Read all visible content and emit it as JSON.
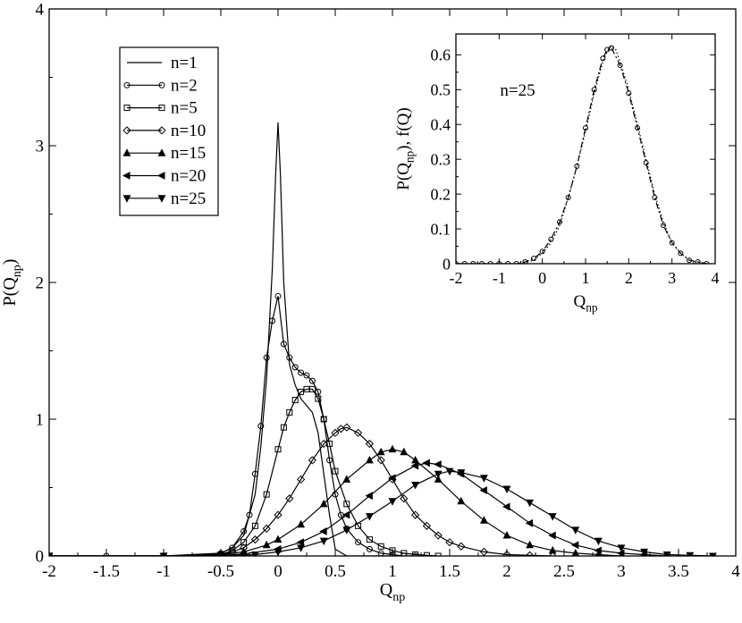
{
  "chart_data": [
    {
      "type": "line",
      "xlabel_main": "Q",
      "xlabel_sub": "np",
      "ylabel_pre": "P(Q",
      "ylabel_sub": "np",
      "ylabel_post": ")",
      "xlim": [
        -2,
        4
      ],
      "ylim": [
        0,
        4
      ],
      "xticks": [
        -2,
        -1.5,
        -1,
        -0.5,
        0,
        0.5,
        1,
        1.5,
        2,
        2.5,
        3,
        3.5,
        4
      ],
      "xtick_labels": [
        "-2",
        "-1.5",
        "-1",
        "-0.5",
        "0",
        "0.5",
        "1",
        "1.5",
        "2",
        "2.5",
        "3",
        "3.5",
        "4"
      ],
      "yticks": [
        0,
        1,
        2,
        3,
        4
      ],
      "ytick_labels": [
        "0",
        "1",
        "2",
        "3",
        "4"
      ],
      "legend_position": "top-left",
      "grid": false,
      "series": [
        {
          "name": "n=1",
          "marker": "none",
          "x": [
            -2,
            -1.5,
            -1,
            -0.6,
            -0.5,
            -0.4,
            -0.3,
            -0.2,
            -0.15,
            -0.1,
            -0.05,
            -0.02,
            0,
            0.02,
            0.05,
            0.1,
            0.15,
            0.2,
            0.25,
            0.3,
            0.35,
            0.4,
            0.45,
            0.5,
            0.6,
            1.0
          ],
          "y": [
            0,
            0,
            0,
            0.01,
            0.02,
            0.06,
            0.15,
            0.45,
            0.8,
            1.3,
            2.1,
            2.8,
            3.17,
            2.8,
            2.0,
            1.4,
            1.25,
            1.15,
            1.1,
            1.05,
            0.9,
            0.6,
            0.3,
            0.05,
            0,
            0
          ]
        },
        {
          "name": "n=2",
          "marker": "circle",
          "x": [
            -2,
            -1.5,
            -1,
            -0.5,
            -0.4,
            -0.3,
            -0.25,
            -0.2,
            -0.15,
            -0.1,
            -0.05,
            0,
            0.05,
            0.1,
            0.15,
            0.2,
            0.25,
            0.3,
            0.35,
            0.4,
            0.45,
            0.5,
            0.55,
            0.6,
            0.7,
            0.8,
            0.9,
            1.0,
            1.1,
            1.2
          ],
          "y": [
            0,
            0,
            0,
            0.02,
            0.06,
            0.18,
            0.3,
            0.6,
            0.95,
            1.45,
            1.72,
            1.9,
            1.55,
            1.45,
            1.38,
            1.34,
            1.32,
            1.28,
            1.2,
            1.0,
            0.7,
            0.45,
            0.3,
            0.2,
            0.1,
            0.05,
            0.02,
            0.01,
            0,
            0
          ]
        },
        {
          "name": "n=5",
          "marker": "square",
          "x": [
            -2,
            -1,
            -0.5,
            -0.4,
            -0.3,
            -0.2,
            -0.1,
            0,
            0.05,
            0.1,
            0.15,
            0.2,
            0.25,
            0.3,
            0.35,
            0.4,
            0.45,
            0.5,
            0.6,
            0.7,
            0.8,
            0.9,
            1.0,
            1.1,
            1.2,
            1.3,
            1.4
          ],
          "y": [
            0,
            0,
            0.01,
            0.04,
            0.1,
            0.22,
            0.45,
            0.78,
            0.94,
            1.05,
            1.14,
            1.2,
            1.22,
            1.22,
            1.15,
            1.0,
            0.82,
            0.62,
            0.38,
            0.22,
            0.12,
            0.07,
            0.04,
            0.02,
            0.01,
            0.005,
            0
          ]
        },
        {
          "name": "n=10",
          "marker": "diamond",
          "x": [
            -2,
            -1,
            -0.5,
            -0.4,
            -0.3,
            -0.2,
            -0.1,
            0,
            0.1,
            0.2,
            0.3,
            0.4,
            0.5,
            0.55,
            0.6,
            0.7,
            0.8,
            0.9,
            1.0,
            1.1,
            1.2,
            1.3,
            1.4,
            1.5,
            1.6,
            1.8,
            2.0,
            2.2,
            2.4
          ],
          "y": [
            0,
            0,
            0.01,
            0.03,
            0.06,
            0.12,
            0.2,
            0.3,
            0.42,
            0.56,
            0.7,
            0.82,
            0.9,
            0.93,
            0.94,
            0.9,
            0.82,
            0.7,
            0.56,
            0.42,
            0.3,
            0.22,
            0.15,
            0.1,
            0.07,
            0.03,
            0.01,
            0.005,
            0
          ]
        },
        {
          "name": "n=15",
          "marker": "triangle-up",
          "x": [
            -2,
            -1,
            -0.5,
            -0.3,
            -0.1,
            0,
            0.2,
            0.4,
            0.6,
            0.8,
            0.9,
            1.0,
            1.1,
            1.2,
            1.4,
            1.6,
            1.8,
            2.0,
            2.2,
            2.4,
            2.6,
            2.8,
            3.0
          ],
          "y": [
            0,
            0,
            0.01,
            0.03,
            0.08,
            0.12,
            0.23,
            0.38,
            0.56,
            0.7,
            0.76,
            0.78,
            0.76,
            0.7,
            0.56,
            0.4,
            0.26,
            0.15,
            0.08,
            0.04,
            0.02,
            0.01,
            0
          ]
        },
        {
          "name": "n=20",
          "marker": "triangle-left",
          "x": [
            -2,
            -1,
            -0.5,
            -0.3,
            0,
            0.2,
            0.4,
            0.6,
            0.8,
            1.0,
            1.2,
            1.3,
            1.4,
            1.6,
            1.8,
            2.0,
            2.2,
            2.4,
            2.6,
            2.8,
            3.0,
            3.2,
            3.4
          ],
          "y": [
            0,
            0,
            0.005,
            0.015,
            0.05,
            0.1,
            0.18,
            0.3,
            0.44,
            0.57,
            0.66,
            0.68,
            0.67,
            0.6,
            0.48,
            0.36,
            0.24,
            0.15,
            0.08,
            0.04,
            0.02,
            0.01,
            0
          ]
        },
        {
          "name": "n=25",
          "marker": "triangle-down",
          "x": [
            -2,
            -1,
            -0.5,
            -0.2,
            0,
            0.2,
            0.4,
            0.6,
            0.8,
            1.0,
            1.2,
            1.4,
            1.5,
            1.6,
            1.8,
            2.0,
            2.2,
            2.4,
            2.6,
            2.8,
            3.0,
            3.2,
            3.4,
            3.6,
            3.8
          ],
          "y": [
            0,
            0,
            0.005,
            0.01,
            0.03,
            0.06,
            0.11,
            0.19,
            0.29,
            0.4,
            0.52,
            0.6,
            0.62,
            0.61,
            0.57,
            0.49,
            0.39,
            0.29,
            0.19,
            0.11,
            0.06,
            0.03,
            0.01,
            0.005,
            0
          ]
        }
      ]
    },
    {
      "type": "line",
      "xlabel_main": "Q",
      "xlabel_sub": "np",
      "ylabel_pre": "P(Q",
      "ylabel_sub": "np",
      "ylabel_post": "), f(Q)",
      "annotation": "n=25",
      "xlim": [
        -2,
        4
      ],
      "ylim": [
        0,
        0.66
      ],
      "xticks": [
        -2,
        -1,
        0,
        1,
        2,
        3,
        4
      ],
      "xtick_labels": [
        "-2",
        "-1",
        "0",
        "1",
        "2",
        "3",
        "4"
      ],
      "yticks": [
        0,
        0.1,
        0.2,
        0.3,
        0.4,
        0.5,
        0.6
      ],
      "ytick_labels": [
        "0",
        "0.1",
        "0.2",
        "0.3",
        "0.4",
        "0.5",
        "0.6"
      ],
      "grid": false,
      "series": [
        {
          "marker": "circle",
          "line": "dash-dot",
          "x": [
            -2,
            -1.8,
            -1.6,
            -1.4,
            -1.2,
            -1,
            -0.8,
            -0.6,
            -0.4,
            -0.2,
            0,
            0.2,
            0.4,
            0.6,
            0.8,
            1.0,
            1.2,
            1.4,
            1.5,
            1.6,
            1.8,
            2.0,
            2.2,
            2.4,
            2.6,
            2.8,
            3.0,
            3.2,
            3.4,
            3.6,
            3.8
          ],
          "y": [
            0,
            0,
            0,
            0,
            0,
            0,
            0,
            0,
            0.005,
            0.015,
            0.035,
            0.07,
            0.12,
            0.19,
            0.28,
            0.39,
            0.5,
            0.59,
            0.615,
            0.62,
            0.57,
            0.49,
            0.39,
            0.29,
            0.19,
            0.11,
            0.06,
            0.03,
            0.01,
            0.005,
            0
          ]
        },
        {
          "marker": "none",
          "line": "dotted",
          "x": [
            -2,
            -1,
            -0.5,
            -0.2,
            0,
            0.2,
            0.4,
            0.6,
            0.8,
            1.0,
            1.2,
            1.4,
            1.5,
            1.6,
            1.7,
            1.8,
            2.0,
            2.2,
            2.4,
            2.6,
            2.8,
            3.0,
            3.2,
            3.4,
            3.6,
            3.8
          ],
          "y": [
            0,
            0,
            0,
            0.01,
            0.03,
            0.06,
            0.11,
            0.19,
            0.28,
            0.38,
            0.49,
            0.58,
            0.61,
            0.625,
            0.615,
            0.58,
            0.5,
            0.4,
            0.3,
            0.2,
            0.12,
            0.06,
            0.03,
            0.01,
            0.005,
            0
          ]
        }
      ]
    }
  ]
}
